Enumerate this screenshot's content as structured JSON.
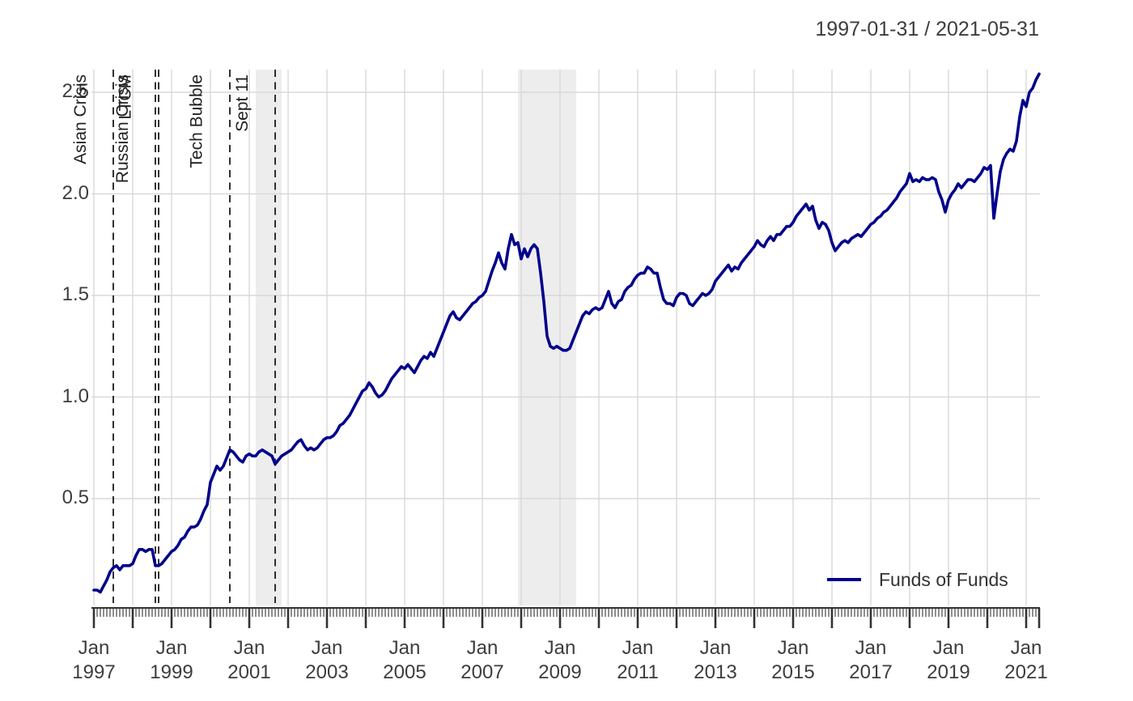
{
  "header": {
    "title": "1997-01-31 / 2021-05-31"
  },
  "legend": {
    "label": "Funds of Funds",
    "line_color": "#00008B",
    "position": "bottomright"
  },
  "chart_data": {
    "type": "line",
    "title": "1997-01-31 / 2021-05-31",
    "xlabel": "",
    "ylabel": "",
    "grid": true,
    "x_range": [
      "1997-01",
      "2021-05"
    ],
    "ylim": [
      0.0,
      2.6
    ],
    "frequency": "monthly",
    "colors": {
      "grid": "#d9d9d9",
      "recession_band": "#ededed",
      "event_line": "#1a1a1a",
      "axis": "#333333",
      "text": "#3d3d3d"
    },
    "y_axis": {
      "ticks": [
        0.5,
        1.0,
        1.5,
        2.0,
        2.5
      ]
    },
    "x_axis": {
      "minor_ticks": "monthly",
      "major_ticks": "yearly",
      "labels": [
        {
          "month": "Jan",
          "year": 1997
        },
        {
          "month": "Jan",
          "year": 1999
        },
        {
          "month": "Jan",
          "year": 2001
        },
        {
          "month": "Jan",
          "year": 2003
        },
        {
          "month": "Jan",
          "year": 2005
        },
        {
          "month": "Jan",
          "year": 2007
        },
        {
          "month": "Jan",
          "year": 2009
        },
        {
          "month": "Jan",
          "year": 2011
        },
        {
          "month": "Jan",
          "year": 2013
        },
        {
          "month": "Jan",
          "year": 2015
        },
        {
          "month": "Jan",
          "year": 2017
        },
        {
          "month": "Jan",
          "year": 2019
        },
        {
          "month": "Jan",
          "year": 2021
        }
      ]
    },
    "events": [
      {
        "label": "Asian Crisis",
        "date": "1997-07"
      },
      {
        "label": "Russian Crisis",
        "date": "1998-08"
      },
      {
        "label": "LTCM",
        "date": "1998-09"
      },
      {
        "label": "Tech Bubble",
        "date": "2000-07"
      },
      {
        "label": "Sept 11",
        "date": "2001-09"
      }
    ],
    "shaded_regions": [
      {
        "start": "2001-03",
        "end": "2001-11"
      },
      {
        "start": "2007-12",
        "end": "2009-06"
      }
    ],
    "series": [
      {
        "name": "Funds of Funds",
        "color": "#00008B",
        "start": "1997-01",
        "end": "2021-05",
        "values": [
          0.05,
          0.05,
          0.04,
          0.07,
          0.1,
          0.14,
          0.16,
          0.17,
          0.15,
          0.17,
          0.17,
          0.17,
          0.18,
          0.22,
          0.25,
          0.25,
          0.24,
          0.25,
          0.25,
          0.17,
          0.17,
          0.18,
          0.2,
          0.22,
          0.24,
          0.25,
          0.27,
          0.3,
          0.31,
          0.34,
          0.36,
          0.36,
          0.37,
          0.4,
          0.44,
          0.47,
          0.58,
          0.62,
          0.66,
          0.64,
          0.66,
          0.7,
          0.74,
          0.73,
          0.71,
          0.69,
          0.68,
          0.71,
          0.72,
          0.71,
          0.71,
          0.73,
          0.74,
          0.73,
          0.72,
          0.71,
          0.67,
          0.69,
          0.71,
          0.72,
          0.73,
          0.74,
          0.76,
          0.78,
          0.79,
          0.76,
          0.74,
          0.75,
          0.74,
          0.75,
          0.77,
          0.79,
          0.8,
          0.8,
          0.81,
          0.83,
          0.86,
          0.87,
          0.89,
          0.91,
          0.94,
          0.97,
          1.0,
          1.03,
          1.04,
          1.07,
          1.05,
          1.02,
          1.0,
          1.01,
          1.03,
          1.06,
          1.09,
          1.11,
          1.13,
          1.15,
          1.14,
          1.16,
          1.14,
          1.12,
          1.15,
          1.18,
          1.2,
          1.19,
          1.22,
          1.2,
          1.24,
          1.28,
          1.32,
          1.36,
          1.4,
          1.42,
          1.39,
          1.38,
          1.4,
          1.42,
          1.44,
          1.46,
          1.47,
          1.49,
          1.5,
          1.52,
          1.57,
          1.62,
          1.66,
          1.71,
          1.66,
          1.63,
          1.73,
          1.8,
          1.75,
          1.76,
          1.68,
          1.73,
          1.69,
          1.73,
          1.75,
          1.73,
          1.61,
          1.47,
          1.3,
          1.25,
          1.24,
          1.25,
          1.24,
          1.23,
          1.23,
          1.24,
          1.28,
          1.32,
          1.36,
          1.4,
          1.42,
          1.41,
          1.43,
          1.44,
          1.43,
          1.44,
          1.48,
          1.52,
          1.46,
          1.44,
          1.47,
          1.48,
          1.52,
          1.54,
          1.55,
          1.58,
          1.6,
          1.61,
          1.61,
          1.64,
          1.63,
          1.61,
          1.61,
          1.54,
          1.48,
          1.46,
          1.46,
          1.45,
          1.49,
          1.51,
          1.51,
          1.5,
          1.46,
          1.45,
          1.47,
          1.49,
          1.51,
          1.5,
          1.51,
          1.53,
          1.57,
          1.59,
          1.61,
          1.63,
          1.65,
          1.62,
          1.64,
          1.63,
          1.66,
          1.68,
          1.7,
          1.72,
          1.74,
          1.77,
          1.75,
          1.74,
          1.77,
          1.79,
          1.77,
          1.8,
          1.8,
          1.82,
          1.84,
          1.84,
          1.86,
          1.89,
          1.91,
          1.93,
          1.95,
          1.92,
          1.94,
          1.87,
          1.83,
          1.86,
          1.85,
          1.82,
          1.76,
          1.72,
          1.74,
          1.76,
          1.77,
          1.76,
          1.78,
          1.79,
          1.8,
          1.79,
          1.81,
          1.83,
          1.85,
          1.86,
          1.88,
          1.89,
          1.91,
          1.92,
          1.94,
          1.96,
          1.98,
          2.01,
          2.03,
          2.05,
          2.1,
          2.06,
          2.07,
          2.06,
          2.08,
          2.07,
          2.07,
          2.08,
          2.07,
          2.01,
          1.97,
          1.91,
          1.97,
          2.0,
          2.02,
          2.05,
          2.03,
          2.05,
          2.07,
          2.07,
          2.06,
          2.08,
          2.1,
          2.13,
          2.12,
          2.14,
          1.88,
          2.0,
          2.11,
          2.17,
          2.2,
          2.22,
          2.21,
          2.26,
          2.38,
          2.46,
          2.43,
          2.5,
          2.52,
          2.56,
          2.59
        ]
      }
    ]
  }
}
